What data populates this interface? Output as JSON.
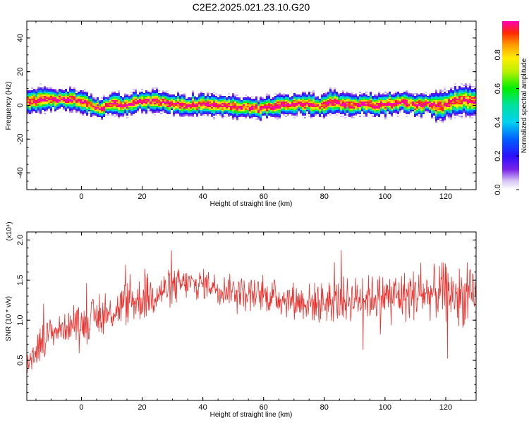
{
  "title": "C2E2.2025.021.23.10.G20",
  "chart_data": [
    {
      "type": "heatmap",
      "xlabel": "Height of straight line (km)",
      "ylabel": "Frequency (Hz)",
      "xlim": [
        -18,
        130
      ],
      "ylim": [
        -50,
        50
      ],
      "xticks": [
        "0",
        "20",
        "40",
        "60",
        "80",
        "100",
        "120"
      ],
      "xtick_values": [
        0,
        20,
        40,
        60,
        80,
        100,
        120
      ],
      "yticks": [
        "40",
        "20",
        "0",
        "-20",
        "-40"
      ],
      "ytick_values": [
        40,
        20,
        0,
        -20,
        -40
      ],
      "colorbar": {
        "label": "Normalized spectral amplitude",
        "ticks": [
          "0.0",
          "0.2",
          "0.4",
          "0.6",
          "0.8"
        ],
        "tick_values": [
          0.0,
          0.2,
          0.4,
          0.6,
          0.8
        ],
        "range": [
          0,
          1
        ]
      },
      "ridge": {
        "x": [
          -18,
          -14,
          -10,
          -6,
          -2,
          2,
          6,
          10,
          14,
          18,
          22,
          26,
          30,
          34,
          38,
          42,
          46,
          50,
          54,
          58,
          62,
          66,
          70,
          74,
          78,
          82,
          86,
          90,
          94,
          98,
          102,
          106,
          110,
          114,
          118,
          122,
          126,
          130
        ],
        "y": [
          2,
          3,
          3,
          4,
          3,
          1,
          -2,
          1,
          0,
          2,
          3,
          2,
          1,
          0,
          0,
          1,
          0,
          -1,
          -1,
          -2,
          -1,
          0,
          1,
          1,
          -1,
          2,
          1,
          0,
          1,
          0,
          1,
          2,
          0,
          1,
          -1,
          2,
          3,
          2
        ]
      }
    },
    {
      "type": "line",
      "xlabel": "Height of straight line (km)",
      "ylabel": "SNR (10 * v/v)",
      "multiplier": "(x10⁴)",
      "xlim": [
        -18,
        130
      ],
      "ylim": [
        0,
        2.1
      ],
      "xticks": [
        "0",
        "20",
        "40",
        "60",
        "80",
        "100",
        "120"
      ],
      "xtick_values": [
        0,
        20,
        40,
        60,
        80,
        100,
        120
      ],
      "yticks": [
        "0.5",
        "1.0",
        "1.5",
        "2.0"
      ],
      "ytick_values": [
        0.5,
        1.0,
        1.5,
        2.0
      ],
      "color": "#e8322e",
      "series": [
        {
          "x": [
            -18,
            -14,
            -10,
            -6,
            -2,
            2,
            6,
            10,
            14,
            18,
            22,
            26,
            30,
            34,
            38,
            42,
            46,
            50,
            54,
            58,
            62,
            66,
            70,
            74,
            78,
            82,
            86,
            90,
            94,
            98,
            102,
            106,
            110,
            114,
            118,
            122,
            126,
            130
          ],
          "values": [
            0.45,
            0.7,
            0.85,
            0.9,
            0.95,
            1.0,
            1.05,
            1.1,
            1.2,
            1.25,
            1.3,
            1.35,
            1.4,
            1.45,
            1.45,
            1.45,
            1.4,
            1.38,
            1.35,
            1.32,
            1.3,
            1.28,
            1.25,
            1.23,
            1.22,
            1.23,
            1.25,
            1.27,
            1.28,
            1.3,
            1.3,
            1.3,
            1.32,
            1.33,
            1.35,
            1.33,
            1.3,
            1.25
          ],
          "spread": [
            0.2,
            0.25,
            0.2,
            0.18,
            0.2,
            0.25,
            0.25,
            0.25,
            0.3,
            0.3,
            0.3,
            0.28,
            0.25,
            0.22,
            0.2,
            0.2,
            0.2,
            0.2,
            0.2,
            0.2,
            0.22,
            0.25,
            0.25,
            0.25,
            0.28,
            0.28,
            0.3,
            0.3,
            0.3,
            0.3,
            0.32,
            0.35,
            0.35,
            0.35,
            0.38,
            0.4,
            0.4,
            0.35
          ]
        }
      ]
    }
  ]
}
